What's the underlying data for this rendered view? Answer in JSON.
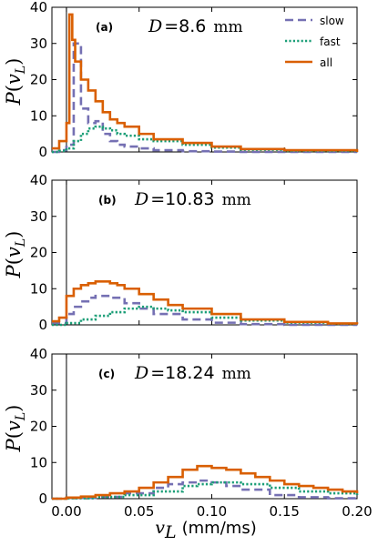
{
  "chart_data": [
    {
      "type": "line",
      "panel_tag": "(a)",
      "d_symbol": "D",
      "d_value": "8.6",
      "d_unit": "mm",
      "ylabel": "P(v_L)",
      "ylim": [
        0,
        40
      ],
      "yticks": [
        "0",
        "10",
        "20",
        "30",
        "40"
      ],
      "series": [
        {
          "name": "slow",
          "color": "#7570b3",
          "style": "dashed",
          "x": [
            -0.01,
            -0.005,
            0.0,
            0.005,
            0.01,
            0.015,
            0.02,
            0.025,
            0.03,
            0.035,
            0.04,
            0.05,
            0.06,
            0.08,
            0.1,
            0.12,
            0.15,
            0.2
          ],
          "y": [
            0,
            0.5,
            2,
            30,
            12,
            8,
            8.5,
            5,
            3,
            2,
            1.5,
            1,
            0.5,
            0.2,
            0.1,
            0,
            0,
            0
          ]
        },
        {
          "name": "fast",
          "color": "#1b9e77",
          "style": "dotted",
          "x": [
            -0.01,
            -0.005,
            0.0,
            0.005,
            0.01,
            0.015,
            0.02,
            0.025,
            0.03,
            0.035,
            0.04,
            0.05,
            0.06,
            0.08,
            0.1,
            0.12,
            0.15,
            0.2
          ],
          "y": [
            0,
            0.3,
            1,
            3,
            5,
            6.5,
            7,
            6.5,
            6,
            5,
            4.5,
            3.5,
            3,
            2,
            1.2,
            0.6,
            0.3,
            0
          ]
        },
        {
          "name": "all",
          "color": "#d95f02",
          "style": "solid",
          "x": [
            -0.01,
            -0.005,
            0.0,
            0.002,
            0.004,
            0.006,
            0.01,
            0.015,
            0.02,
            0.025,
            0.03,
            0.035,
            0.04,
            0.05,
            0.06,
            0.08,
            0.1,
            0.12,
            0.15,
            0.2
          ],
          "y": [
            1,
            3,
            8,
            38,
            31,
            25,
            20,
            17,
            14,
            11,
            9,
            8,
            7,
            5,
            3.5,
            2.5,
            1.5,
            0.8,
            0.5,
            0
          ]
        }
      ]
    },
    {
      "type": "line",
      "panel_tag": "(b)",
      "d_symbol": "D",
      "d_value": "10.83",
      "d_unit": "mm",
      "ylabel": "P(v_L)",
      "ylim": [
        0,
        40
      ],
      "yticks": [
        "0",
        "10",
        "20",
        "30",
        "40"
      ],
      "series": [
        {
          "name": "slow",
          "color": "#7570b3",
          "style": "dashed",
          "x": [
            -0.01,
            0.0,
            0.005,
            0.01,
            0.015,
            0.02,
            0.025,
            0.03,
            0.04,
            0.05,
            0.06,
            0.08,
            0.1,
            0.12,
            0.15,
            0.2
          ],
          "y": [
            0.5,
            3,
            5,
            6.5,
            7.5,
            8,
            8,
            7.5,
            6,
            4.5,
            3,
            1.5,
            0.6,
            0.2,
            0,
            0
          ]
        },
        {
          "name": "fast",
          "color": "#1b9e77",
          "style": "dotted",
          "x": [
            -0.01,
            0.0,
            0.01,
            0.02,
            0.03,
            0.04,
            0.05,
            0.06,
            0.07,
            0.08,
            0.1,
            0.12,
            0.15,
            0.18,
            0.2
          ],
          "y": [
            0,
            0.5,
            1.5,
            2.5,
            3.5,
            4.5,
            5,
            4.5,
            4,
            3.5,
            2,
            1.2,
            0.6,
            0.3,
            0.2
          ]
        },
        {
          "name": "all",
          "color": "#d95f02",
          "style": "solid",
          "x": [
            -0.01,
            -0.005,
            0.0,
            0.005,
            0.01,
            0.015,
            0.02,
            0.025,
            0.03,
            0.035,
            0.04,
            0.05,
            0.06,
            0.07,
            0.08,
            0.1,
            0.12,
            0.15,
            0.18,
            0.2
          ],
          "y": [
            1,
            2,
            8,
            10,
            11,
            11.5,
            12,
            12,
            11.5,
            11,
            10,
            8.5,
            7,
            5.5,
            4.5,
            3,
            1.5,
            0.8,
            0.4,
            0.2
          ]
        }
      ]
    },
    {
      "type": "line",
      "panel_tag": "(c)",
      "d_symbol": "D",
      "d_value": "18.24",
      "d_unit": "mm",
      "ylabel": "P(v_L)",
      "xlabel": "v_L (mm/ms)",
      "ylim": [
        0,
        40
      ],
      "yticks": [
        "0",
        "10",
        "20",
        "30",
        "40"
      ],
      "xticks": [
        "0.00",
        "0.05",
        "0.10",
        "0.15",
        "0.20"
      ],
      "series": [
        {
          "name": "slow",
          "color": "#7570b3",
          "style": "dashed",
          "x": [
            -0.01,
            0.0,
            0.02,
            0.04,
            0.06,
            0.07,
            0.08,
            0.09,
            0.1,
            0.11,
            0.12,
            0.14,
            0.16,
            0.18,
            0.2
          ],
          "y": [
            0,
            0.2,
            0.5,
            1.5,
            3,
            4,
            4.5,
            5,
            4.5,
            3.5,
            2.5,
            1,
            0.4,
            0.1,
            0
          ]
        },
        {
          "name": "fast",
          "color": "#1b9e77",
          "style": "dotted",
          "x": [
            -0.01,
            0.0,
            0.02,
            0.04,
            0.06,
            0.08,
            0.09,
            0.1,
            0.11,
            0.12,
            0.14,
            0.16,
            0.18,
            0.2
          ],
          "y": [
            0,
            0.1,
            0.5,
            1,
            2,
            3.5,
            4,
            4.5,
            4.5,
            4,
            3,
            2,
            1.5,
            1
          ]
        },
        {
          "name": "all",
          "color": "#d95f02",
          "style": "solid",
          "x": [
            -0.01,
            0.0,
            0.01,
            0.02,
            0.03,
            0.04,
            0.05,
            0.06,
            0.07,
            0.08,
            0.09,
            0.1,
            0.11,
            0.12,
            0.13,
            0.14,
            0.15,
            0.16,
            0.17,
            0.18,
            0.19,
            0.2
          ],
          "y": [
            0,
            0.3,
            0.6,
            1,
            1.5,
            2,
            3,
            4.5,
            6,
            8,
            9,
            8.5,
            8,
            7,
            6,
            5,
            4,
            3.5,
            3,
            2.5,
            2,
            1.5
          ]
        }
      ]
    }
  ],
  "legend": [
    {
      "label": "slow",
      "color": "#7570b3",
      "style": "dashed"
    },
    {
      "label": "fast",
      "color": "#1b9e77",
      "style": "dotted"
    },
    {
      "label": "all",
      "color": "#d95f02",
      "style": "solid"
    }
  ],
  "xrange": [
    -0.01,
    0.2
  ],
  "xlabel_symbol": "v",
  "xlabel_sub": "L",
  "xlabel_unit": "(mm/ms)",
  "ylabel_symbol": "P",
  "ylabel_var": "v",
  "ylabel_sub": "L"
}
